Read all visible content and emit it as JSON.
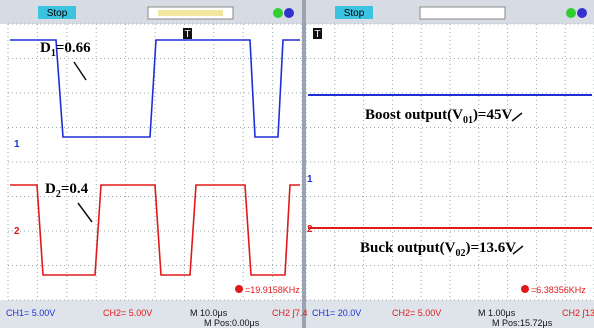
{
  "left_panel": {
    "status": "Stop",
    "trigger_marker": "T",
    "annotations": [
      {
        "main": "D",
        "sub": "1",
        "rest": "=0.66"
      },
      {
        "main": "D",
        "sub": "2",
        "rest": "=0.4"
      }
    ],
    "channel_markers": [
      "1",
      "2"
    ],
    "frequency": "=19.9158KHz",
    "footer": {
      "ch1": "CH1= 5.00V",
      "ch2": "CH2= 5.00V",
      "timebase": "M 10.0μs",
      "position": "M Pos:0.00μs",
      "trigger": "CH2 ∫7.4"
    }
  },
  "right_panel": {
    "status": "Stop",
    "trigger_marker": "T",
    "annotations": [
      {
        "main": "Boost output(V",
        "sub": "01",
        "rest": ")=45V"
      },
      {
        "main": "Buck output(V",
        "sub": "02",
        "rest": ")=13.6V"
      }
    ],
    "channel_markers": [
      "1",
      "2"
    ],
    "frequency": "=6.38356KHz",
    "footer": {
      "ch1": "CH1= 20.0V",
      "ch2": "CH2= 5.00V",
      "timebase": "M 1.00μs",
      "position": "M Pos:15.72μs",
      "trigger": "CH2 ∫13"
    }
  }
}
